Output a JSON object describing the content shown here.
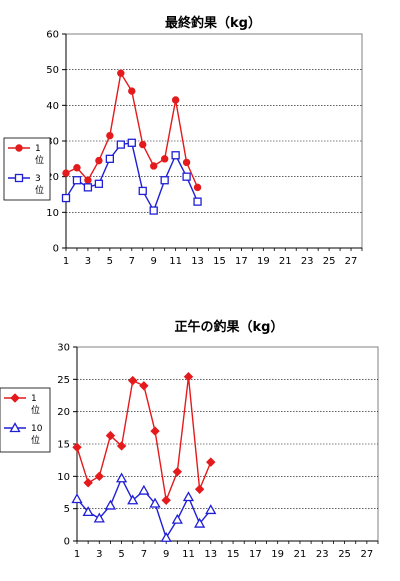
{
  "chart_data": [
    {
      "type": "line",
      "title": "最終釣果（kg）",
      "xlabel": "",
      "ylabel": "",
      "xlim": [
        1,
        28
      ],
      "ylim": [
        0,
        60
      ],
      "y_ticks": [
        "0",
        "10",
        "20",
        "30",
        "40",
        "50",
        "60"
      ],
      "x_ticks": [
        "1",
        "3",
        "5",
        "7",
        "9",
        "11",
        "13",
        "15",
        "17",
        "19",
        "21",
        "23",
        "25",
        "27"
      ],
      "grid": "horizontal dotted",
      "legend_position": "left",
      "x": [
        1,
        2,
        3,
        4,
        5,
        6,
        7,
        8,
        9,
        10,
        11,
        12,
        13
      ],
      "series": [
        {
          "name": "1位",
          "color": "#e41a1c",
          "marker": "circle",
          "values": [
            21,
            22.5,
            19,
            24.5,
            31.5,
            49,
            44,
            29,
            23,
            25,
            41.5,
            24,
            17
          ]
        },
        {
          "name": "3位",
          "color": "#1f1fd6",
          "marker": "square",
          "values": [
            14,
            19,
            17,
            18,
            25,
            29,
            29.5,
            16,
            10.5,
            19,
            26,
            20,
            13
          ]
        }
      ]
    },
    {
      "type": "line",
      "title": "正午の釣果（kg）",
      "xlabel": "",
      "ylabel": "",
      "xlim": [
        1,
        28
      ],
      "ylim": [
        0,
        30
      ],
      "y_ticks": [
        "0",
        "5",
        "10",
        "15",
        "20",
        "25",
        "30"
      ],
      "x_ticks": [
        "1",
        "3",
        "5",
        "7",
        "9",
        "11",
        "13",
        "15",
        "17",
        "19",
        "21",
        "23",
        "25",
        "27"
      ],
      "grid": "horizontal dotted",
      "legend_position": "left",
      "x": [
        1,
        2,
        3,
        4,
        5,
        6,
        7,
        8,
        9,
        10,
        11,
        12,
        13
      ],
      "series": [
        {
          "name": "1位",
          "color": "#e41a1c",
          "marker": "diamond",
          "values": [
            14.5,
            9,
            10,
            16.3,
            14.7,
            24.8,
            24,
            17,
            6.3,
            10.7,
            25.4,
            8,
            12.2
          ]
        },
        {
          "name": "10位",
          "color": "#1f1fd6",
          "marker": "triangle",
          "values": [
            6.5,
            4.5,
            3.5,
            5.5,
            9.7,
            6.3,
            7.8,
            5.8,
            0.5,
            3.3,
            6.8,
            2.7,
            4.8
          ]
        }
      ]
    }
  ]
}
